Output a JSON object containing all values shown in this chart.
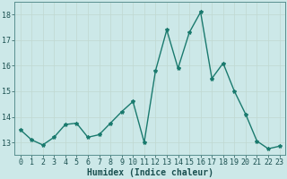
{
  "x": [
    0,
    1,
    2,
    3,
    4,
    5,
    6,
    7,
    8,
    9,
    10,
    11,
    12,
    13,
    14,
    15,
    16,
    17,
    18,
    19,
    20,
    21,
    22,
    23
  ],
  "y": [
    13.5,
    13.1,
    12.9,
    13.2,
    13.7,
    13.75,
    13.2,
    13.3,
    13.75,
    14.2,
    14.6,
    13.0,
    15.8,
    17.4,
    15.9,
    17.3,
    18.1,
    15.5,
    16.1,
    15.0,
    14.1,
    13.05,
    12.75,
    12.85
  ],
  "xlabel": "Humidex (Indice chaleur)",
  "xlim": [
    -0.5,
    23.5
  ],
  "ylim": [
    12.5,
    18.5
  ],
  "yticks": [
    13,
    14,
    15,
    16,
    17,
    18
  ],
  "xticks": [
    0,
    1,
    2,
    3,
    4,
    5,
    6,
    7,
    8,
    9,
    10,
    11,
    12,
    13,
    14,
    15,
    16,
    17,
    18,
    19,
    20,
    21,
    22,
    23
  ],
  "line_color": "#1a7a6e",
  "bg_color": "#cce8e8",
  "grid_color_major": "#c0d8d0",
  "grid_color_minor": "#d8ecec",
  "marker": "*",
  "marker_size": 3,
  "line_width": 1.0,
  "tick_fontsize": 6,
  "xlabel_fontsize": 7,
  "tick_color": "#1a5050",
  "xlabel_color": "#1a5050"
}
